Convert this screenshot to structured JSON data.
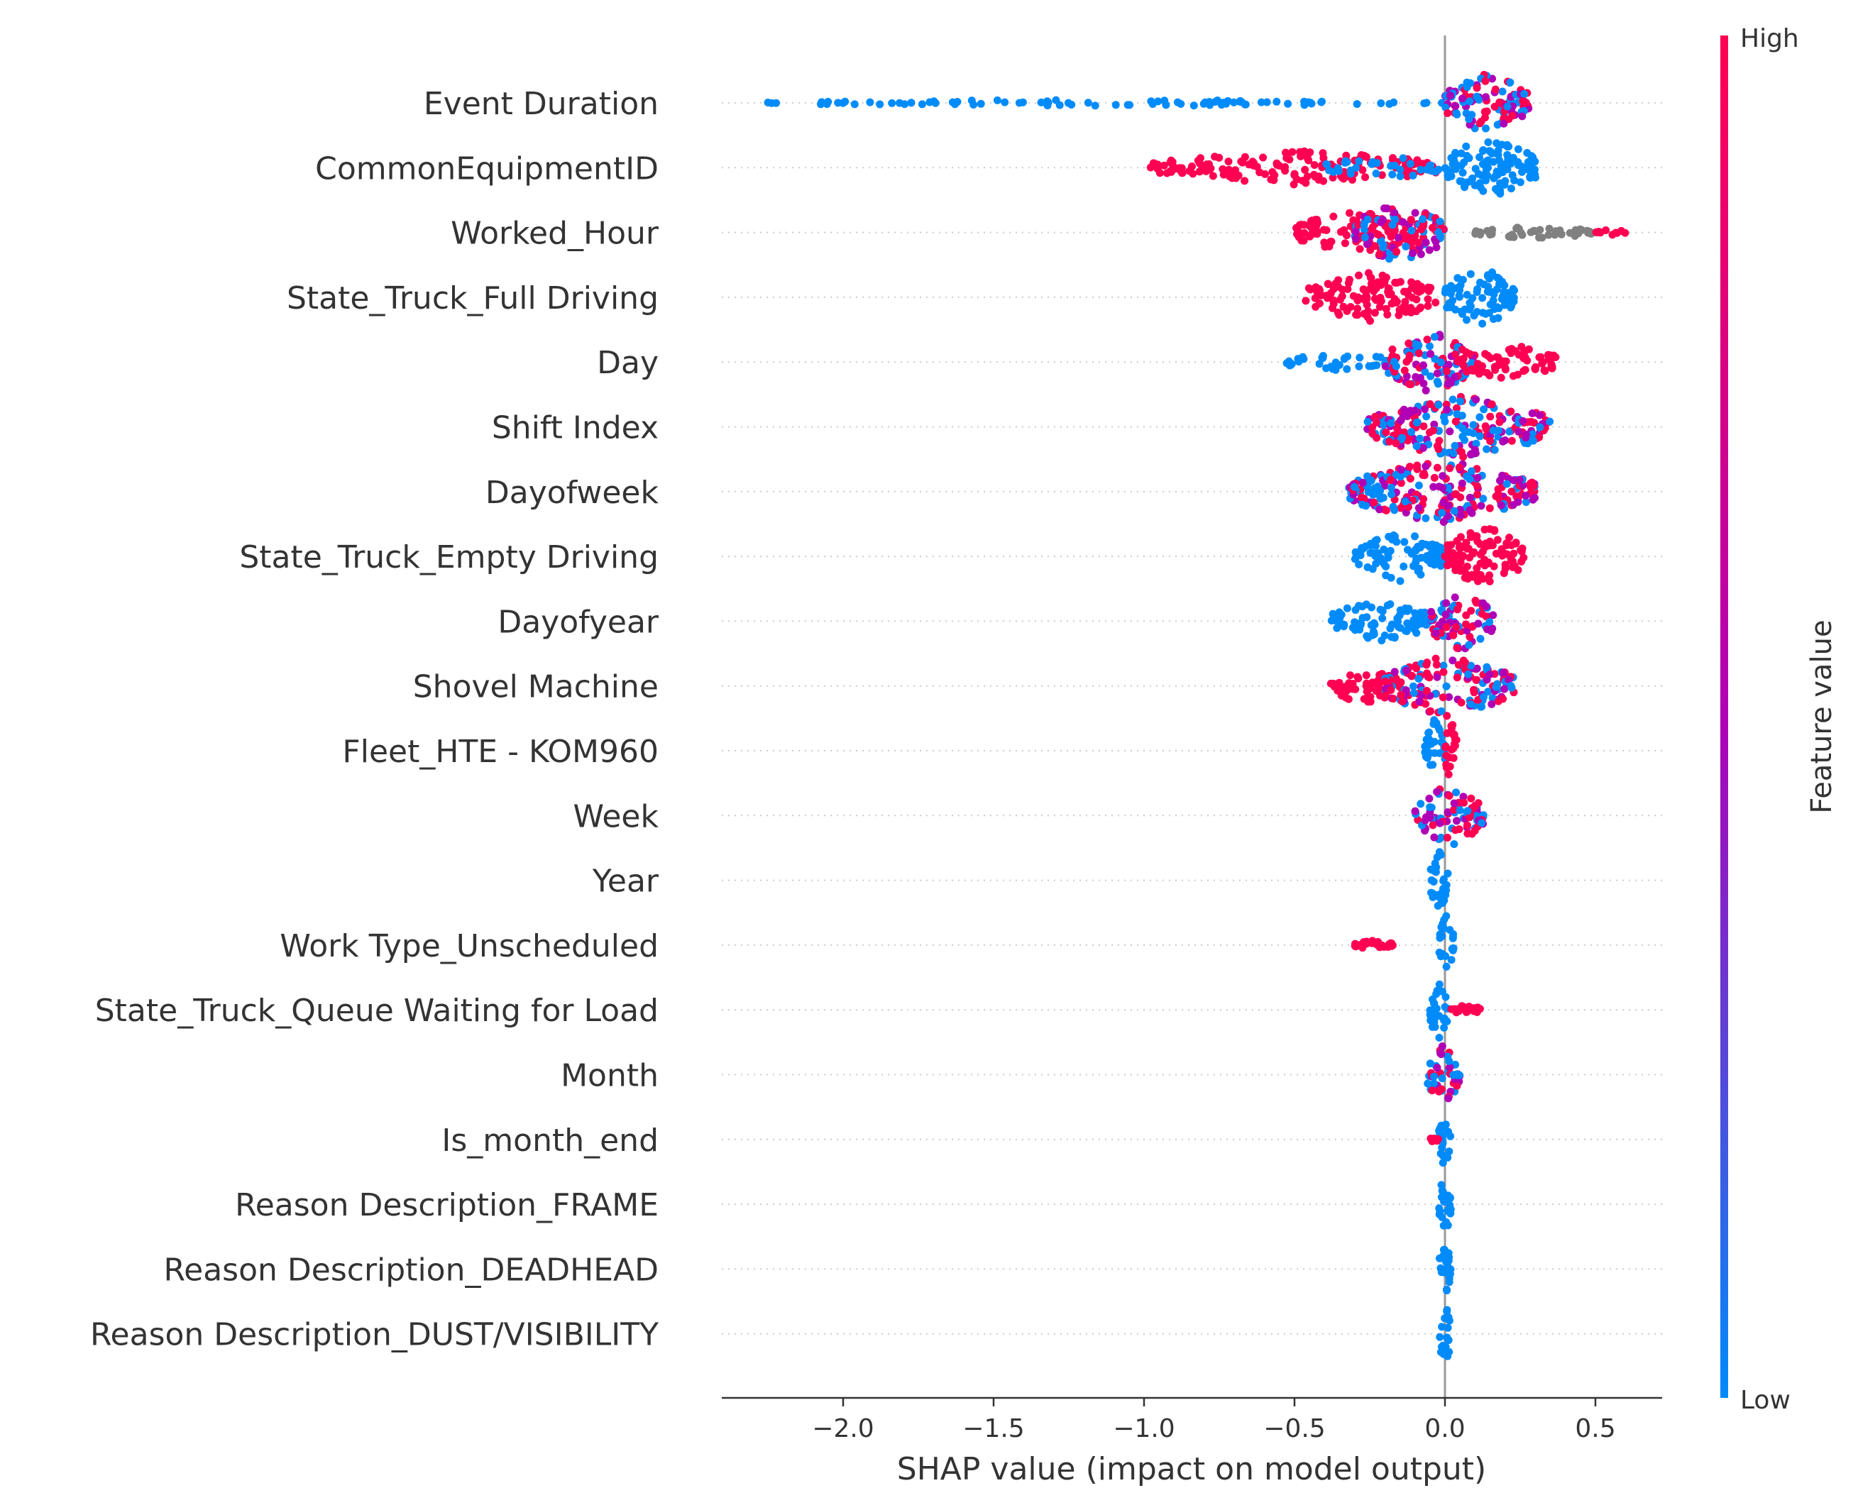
{
  "chart_data": {
    "type": "scatter",
    "subtype": "shap-beeswarm",
    "title": "",
    "xlabel": "SHAP value (impact on model output)",
    "ylabel": "",
    "xlim": [
      -2.4,
      0.72
    ],
    "xticks": [
      -2.0,
      -1.5,
      -1.0,
      -0.5,
      0.0,
      0.5
    ],
    "xtick_labels": [
      "−2.0",
      "−1.5",
      "−1.0",
      "−0.5",
      "0.0",
      "0.5"
    ],
    "colorbar": {
      "label": "Feature value",
      "high_label": "High",
      "low_label": "Low",
      "high_color": "#ff0052",
      "low_color": "#008bfb"
    },
    "features": [
      {
        "name": "Event Duration",
        "min": -2.27,
        "max": 0.28,
        "spread": 0.2,
        "segments": [
          {
            "from": -2.27,
            "to": 0.0,
            "color": "low",
            "density": 0.25,
            "thick": 0.1
          },
          {
            "from": 0.0,
            "to": 0.28,
            "color": "mixed",
            "density": 1.0,
            "thick": 1.0
          }
        ]
      },
      {
        "name": "CommonEquipmentID",
        "min": -0.98,
        "max": 0.31,
        "spread": 0.2,
        "segments": [
          {
            "from": -0.98,
            "to": -0.02,
            "color": "high",
            "density": 0.7,
            "thick": 0.55
          },
          {
            "from": -0.4,
            "to": -0.02,
            "color": "low",
            "density": 0.3,
            "thick": 0.4
          },
          {
            "from": 0.0,
            "to": 0.31,
            "color": "low",
            "density": 1.0,
            "thick": 1.0
          }
        ]
      },
      {
        "name": "Worked_Hour",
        "min": -0.5,
        "max": 0.6,
        "spread": 0.25,
        "segments": [
          {
            "from": -0.5,
            "to": -0.1,
            "color": "high",
            "density": 0.7,
            "thick": 0.7
          },
          {
            "from": -0.3,
            "to": 0.0,
            "color": "mixed",
            "density": 1.0,
            "thick": 1.0
          },
          {
            "from": 0.1,
            "to": 0.5,
            "color": "gray",
            "density": 0.6,
            "thick": 0.2
          },
          {
            "from": 0.5,
            "to": 0.6,
            "color": "high",
            "density": 0.2,
            "thick": 0.1
          }
        ]
      },
      {
        "name": "State_Truck_Full Driving",
        "min": -0.47,
        "max": 0.23,
        "spread": 0.22,
        "segments": [
          {
            "from": -0.47,
            "to": -0.03,
            "color": "high",
            "density": 0.9,
            "thick": 0.8
          },
          {
            "from": 0.0,
            "to": 0.23,
            "color": "low",
            "density": 1.0,
            "thick": 1.0
          }
        ]
      },
      {
        "name": "Day",
        "min": -0.53,
        "max": 0.37,
        "spread": 0.22,
        "segments": [
          {
            "from": -0.53,
            "to": -0.15,
            "color": "low",
            "density": 0.4,
            "thick": 0.3
          },
          {
            "from": -0.2,
            "to": 0.1,
            "color": "mixed",
            "density": 1.0,
            "thick": 1.0
          },
          {
            "from": 0.05,
            "to": 0.37,
            "color": "high",
            "density": 0.8,
            "thick": 0.6
          }
        ]
      },
      {
        "name": "Shift Index",
        "min": -0.26,
        "max": 0.35,
        "spread": 0.22,
        "segments": [
          {
            "from": -0.26,
            "to": 0.35,
            "color": "mixed",
            "density": 1.0,
            "thick": 1.0
          }
        ]
      },
      {
        "name": "Dayofweek",
        "min": -0.32,
        "max": 0.3,
        "spread": 0.22,
        "segments": [
          {
            "from": -0.32,
            "to": 0.3,
            "color": "mixed",
            "density": 1.0,
            "thick": 1.0
          }
        ]
      },
      {
        "name": "State_Truck_Empty Driving",
        "min": -0.3,
        "max": 0.27,
        "spread": 0.2,
        "segments": [
          {
            "from": -0.3,
            "to": 0.0,
            "color": "low",
            "density": 0.9,
            "thick": 0.8
          },
          {
            "from": 0.0,
            "to": 0.27,
            "color": "high",
            "density": 1.0,
            "thick": 1.0
          }
        ]
      },
      {
        "name": "Dayofyear",
        "min": -0.38,
        "max": 0.16,
        "spread": 0.2,
        "segments": [
          {
            "from": -0.38,
            "to": -0.05,
            "color": "low",
            "density": 0.9,
            "thick": 0.7
          },
          {
            "from": -0.05,
            "to": 0.16,
            "color": "mixed",
            "density": 1.0,
            "thick": 1.0
          }
        ]
      },
      {
        "name": "Shovel Machine",
        "min": -0.38,
        "max": 0.23,
        "spread": 0.2,
        "segments": [
          {
            "from": -0.38,
            "to": -0.15,
            "color": "high",
            "density": 0.8,
            "thick": 0.6
          },
          {
            "from": -0.2,
            "to": 0.23,
            "color": "mixed",
            "density": 1.0,
            "thick": 1.0
          }
        ]
      },
      {
        "name": "Fleet_HTE - KOM960",
        "min": -0.07,
        "max": 0.04,
        "spread": 0.22,
        "segments": [
          {
            "from": -0.07,
            "to": 0.0,
            "color": "low",
            "density": 1.0,
            "thick": 1.0
          },
          {
            "from": 0.0,
            "to": 0.04,
            "color": "high",
            "density": 1.0,
            "thick": 1.0
          }
        ]
      },
      {
        "name": "Week",
        "min": -0.1,
        "max": 0.13,
        "spread": 0.2,
        "segments": [
          {
            "from": -0.1,
            "to": 0.13,
            "color": "mixed",
            "density": 1.0,
            "thick": 1.0
          }
        ]
      },
      {
        "name": "Year",
        "min": -0.05,
        "max": 0.01,
        "spread": 0.18,
        "segments": [
          {
            "from": -0.05,
            "to": 0.01,
            "color": "low",
            "density": 1.0,
            "thick": 1.0
          }
        ]
      },
      {
        "name": "Work Type_Unscheduled",
        "min": -0.3,
        "max": 0.03,
        "spread": 0.2,
        "segments": [
          {
            "from": -0.3,
            "to": -0.17,
            "color": "high",
            "density": 1.0,
            "thick": 0.15
          },
          {
            "from": -0.02,
            "to": 0.03,
            "color": "low",
            "density": 1.0,
            "thick": 1.0
          }
        ]
      },
      {
        "name": "State_Truck_Queue Waiting for Load",
        "min": -0.05,
        "max": 0.12,
        "spread": 0.18,
        "segments": [
          {
            "from": -0.05,
            "to": 0.01,
            "color": "low",
            "density": 1.0,
            "thick": 1.0
          },
          {
            "from": 0.02,
            "to": 0.12,
            "color": "high",
            "density": 1.0,
            "thick": 0.15
          }
        ]
      },
      {
        "name": "Month",
        "min": -0.06,
        "max": 0.05,
        "spread": 0.2,
        "segments": [
          {
            "from": -0.06,
            "to": 0.05,
            "color": "mixed",
            "density": 1.0,
            "thick": 1.0
          }
        ]
      },
      {
        "name": "Is_month_end",
        "min": -0.05,
        "max": 0.02,
        "spread": 0.18,
        "segments": [
          {
            "from": -0.02,
            "to": 0.02,
            "color": "low",
            "density": 1.0,
            "thick": 1.0
          },
          {
            "from": -0.05,
            "to": -0.02,
            "color": "high",
            "density": 0.6,
            "thick": 0.1
          }
        ]
      },
      {
        "name": "Reason Description_FRAME",
        "min": -0.02,
        "max": 0.02,
        "spread": 0.18,
        "segments": [
          {
            "from": -0.02,
            "to": 0.02,
            "color": "low",
            "density": 1.0,
            "thick": 1.0
          }
        ]
      },
      {
        "name": "Reason Description_DEADHEAD",
        "min": -0.02,
        "max": 0.02,
        "spread": 0.18,
        "segments": [
          {
            "from": -0.02,
            "to": 0.02,
            "color": "low",
            "density": 1.0,
            "thick": 1.0
          }
        ]
      },
      {
        "name": "Reason Description_DUST/VISIBILITY",
        "min": -0.02,
        "max": 0.02,
        "spread": 0.18,
        "segments": [
          {
            "from": -0.02,
            "to": 0.02,
            "color": "low",
            "density": 1.0,
            "thick": 1.0
          }
        ]
      }
    ]
  },
  "colors": {
    "high": "#ff0052",
    "low": "#008bfb",
    "mid": "#b000b5",
    "gray": "#808080",
    "axis": "#333333",
    "zero_line": "#999999"
  }
}
